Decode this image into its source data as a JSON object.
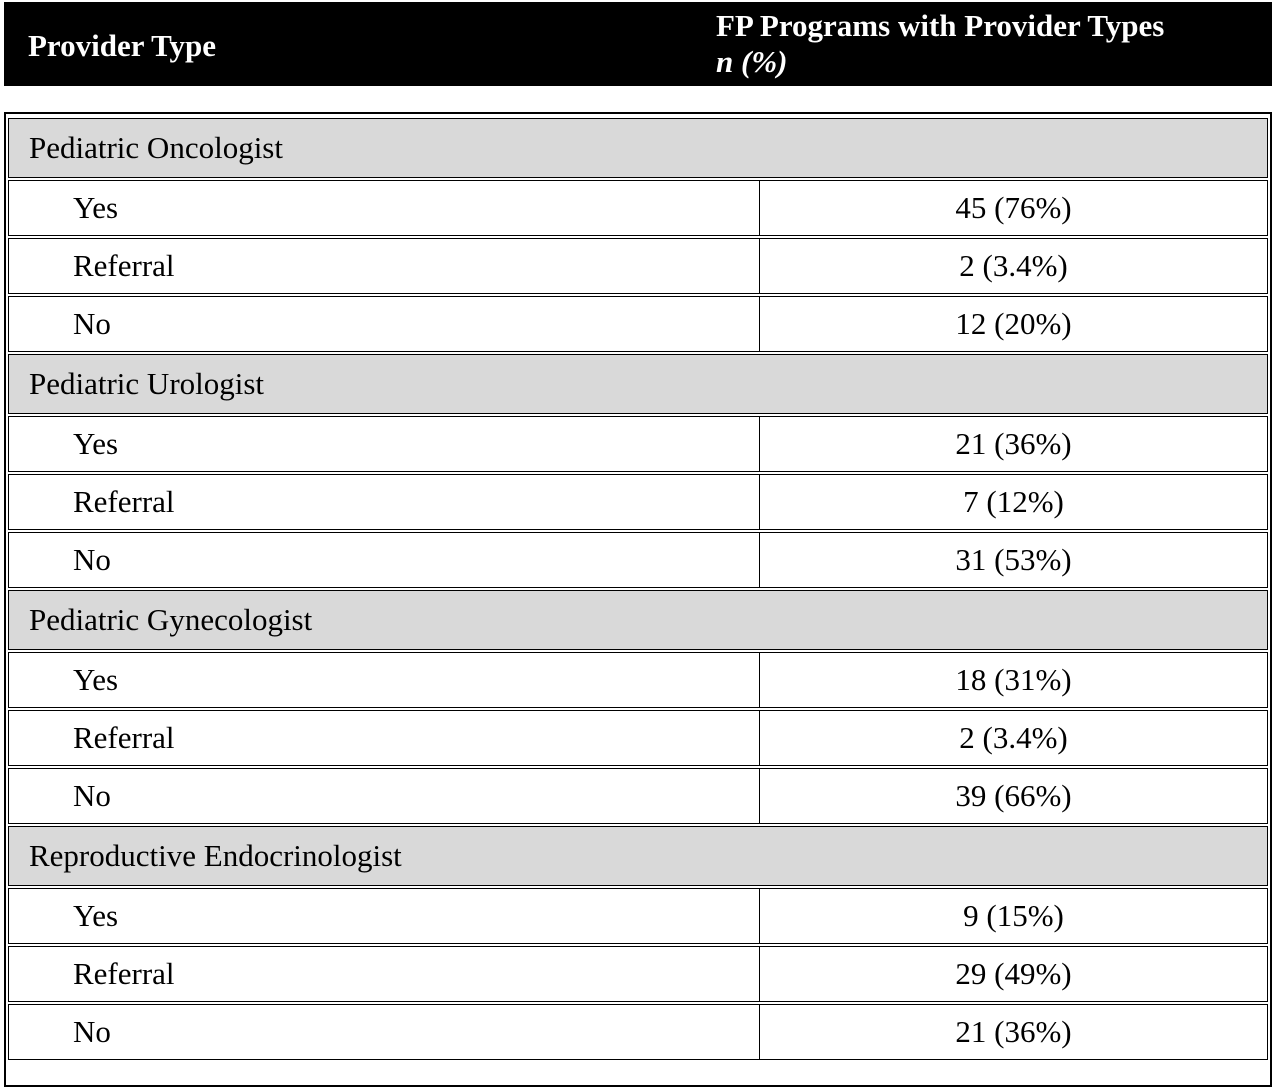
{
  "header": {
    "provider_type": "Provider Type",
    "programs_line1": "FP Programs with Provider Types",
    "programs_line2": "n (%)"
  },
  "groups": [
    {
      "name": "Pediatric Oncologist",
      "rows": [
        {
          "label": "Yes",
          "value": "45 (76%)"
        },
        {
          "label": "Referral",
          "value": "2 (3.4%)"
        },
        {
          "label": "No",
          "value": "12 (20%)"
        }
      ]
    },
    {
      "name": "Pediatric Urologist",
      "rows": [
        {
          "label": "Yes",
          "value": "21 (36%)"
        },
        {
          "label": "Referral",
          "value": "7 (12%)"
        },
        {
          "label": "No",
          "value": "31 (53%)"
        }
      ]
    },
    {
      "name": "Pediatric Gynecologist",
      "rows": [
        {
          "label": "Yes",
          "value": "18 (31%)"
        },
        {
          "label": "Referral",
          "value": "2 (3.4%)"
        },
        {
          "label": "No",
          "value": "39 (66%)"
        }
      ]
    },
    {
      "name": "Reproductive Endocrinologist",
      "rows": [
        {
          "label": "Yes",
          "value": "9 (15%)"
        },
        {
          "label": "Referral",
          "value": "29 (49%)"
        },
        {
          "label": "No",
          "value": "21 (36%)"
        }
      ]
    }
  ]
}
